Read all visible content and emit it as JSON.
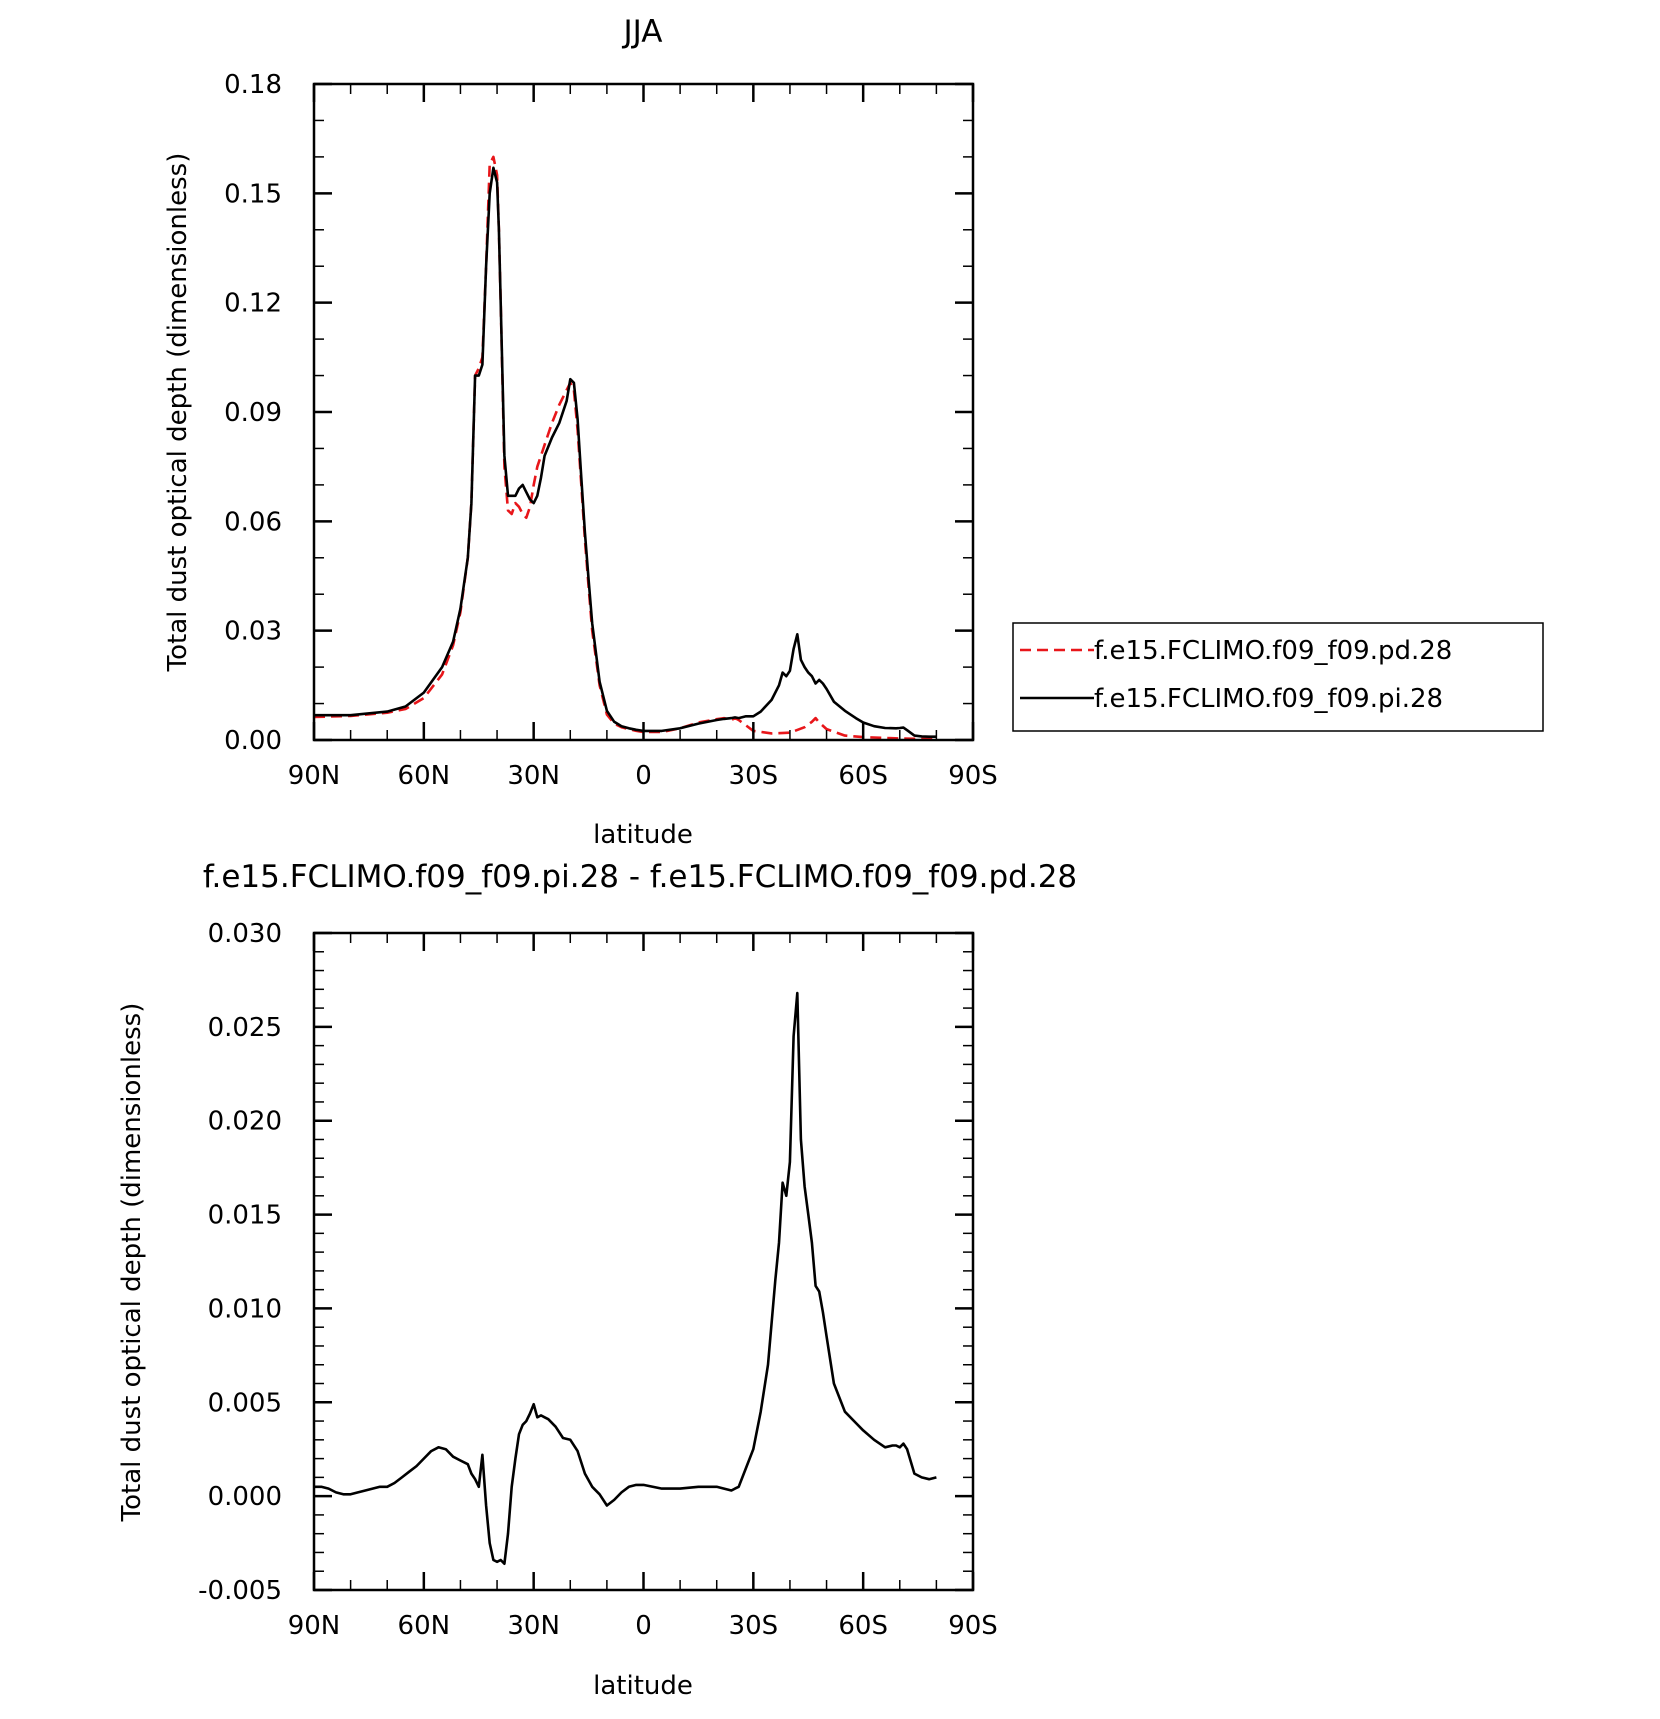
{
  "chart_data": [
    {
      "type": "line",
      "title": "JJA",
      "xlabel": "latitude",
      "ylabel": "Total dust optical depth (dimensionless)",
      "xlim": [
        90,
        -90
      ],
      "ylim": [
        0,
        0.18
      ],
      "x_ticks": [
        90,
        60,
        30,
        0,
        -30,
        -60,
        -90
      ],
      "x_tick_labels": [
        "90N",
        "60N",
        "30N",
        "0",
        "30S",
        "60S",
        "90S"
      ],
      "y_ticks": [
        0,
        0.03,
        0.06,
        0.09,
        0.12,
        0.15,
        0.18
      ],
      "y_tick_labels": [
        "0.00",
        "0.03",
        "0.06",
        "0.09",
        "0.12",
        "0.15",
        "0.18"
      ],
      "legend_position": "right",
      "series": [
        {
          "name": "f.e15.FCLIMO.f09_f09.pd.28",
          "color": "#e8161a",
          "style": "dashed",
          "x": [
            90,
            80,
            70,
            65,
            60,
            55,
            52,
            50,
            48,
            47,
            46,
            45,
            44,
            43,
            42,
            41,
            40,
            39.5,
            39,
            38,
            37,
            36,
            35,
            34,
            33,
            32,
            31,
            30,
            29,
            28,
            27,
            25,
            23,
            21,
            20,
            19,
            18,
            17,
            16,
            15,
            14,
            12,
            10,
            8,
            6,
            4,
            2,
            0,
            -5,
            -10,
            -15,
            -20,
            -22,
            -24,
            -25,
            -26,
            -28,
            -30,
            -35,
            -40,
            -44,
            -46,
            -47,
            -48,
            -50,
            -55,
            -60,
            -65,
            -70,
            -75,
            -80
          ],
          "y": [
            0.0063,
            0.0066,
            0.0075,
            0.0085,
            0.0115,
            0.018,
            0.026,
            0.035,
            0.05,
            0.065,
            0.1,
            0.102,
            0.105,
            0.13,
            0.158,
            0.16,
            0.155,
            0.14,
            0.12,
            0.075,
            0.063,
            0.062,
            0.065,
            0.064,
            0.062,
            0.061,
            0.064,
            0.07,
            0.075,
            0.078,
            0.081,
            0.087,
            0.092,
            0.096,
            0.098,
            0.096,
            0.085,
            0.07,
            0.055,
            0.042,
            0.03,
            0.015,
            0.007,
            0.0045,
            0.0035,
            0.003,
            0.0025,
            0.0022,
            0.0022,
            0.0032,
            0.0048,
            0.0057,
            0.006,
            0.0055,
            0.006,
            0.0055,
            0.004,
            0.0025,
            0.0018,
            0.002,
            0.0035,
            0.005,
            0.006,
            0.0048,
            0.003,
            0.0012,
            0.0008,
            0.0006,
            0.0004,
            0.0003,
            0.0003
          ]
        },
        {
          "name": "f.e15.FCLIMO.f09_f09.pi.28",
          "color": "#000000",
          "style": "solid",
          "x": [
            90,
            80,
            70,
            65,
            60,
            55,
            52,
            50,
            48,
            47,
            46,
            45,
            44,
            43,
            42,
            41,
            40,
            39.5,
            39,
            38,
            37,
            36,
            35,
            34,
            33,
            32,
            31,
            30,
            29,
            28,
            27,
            25,
            23,
            21,
            20,
            19,
            18,
            17,
            16,
            15,
            14,
            12,
            10,
            8,
            6,
            4,
            2,
            0,
            -5,
            -10,
            -15,
            -20,
            -22,
            -24,
            -25,
            -26,
            -28,
            -30,
            -32,
            -35,
            -37,
            -38,
            -39,
            -40,
            -41,
            -42,
            -43,
            -44,
            -45,
            -46,
            -47,
            -48,
            -49,
            -50,
            -52,
            -55,
            -58,
            -60,
            -63,
            -66,
            -69,
            -70,
            -71,
            -72,
            -74,
            -76,
            -78,
            -80
          ],
          "y": [
            0.0068,
            0.0068,
            0.0078,
            0.0092,
            0.013,
            0.02,
            0.027,
            0.036,
            0.05,
            0.065,
            0.1,
            0.1,
            0.103,
            0.13,
            0.15,
            0.157,
            0.153,
            0.14,
            0.12,
            0.078,
            0.067,
            0.067,
            0.067,
            0.069,
            0.07,
            0.068,
            0.066,
            0.065,
            0.067,
            0.072,
            0.078,
            0.083,
            0.087,
            0.093,
            0.099,
            0.098,
            0.088,
            0.072,
            0.057,
            0.044,
            0.032,
            0.016,
            0.008,
            0.005,
            0.0038,
            0.0032,
            0.0028,
            0.0025,
            0.0025,
            0.0032,
            0.0045,
            0.0055,
            0.0058,
            0.006,
            0.0062,
            0.006,
            0.0065,
            0.0065,
            0.0078,
            0.011,
            0.015,
            0.0185,
            0.0175,
            0.019,
            0.025,
            0.029,
            0.022,
            0.02,
            0.0185,
            0.0175,
            0.0155,
            0.0165,
            0.0155,
            0.014,
            0.0105,
            0.008,
            0.006,
            0.0048,
            0.0038,
            0.0033,
            0.0032,
            0.0033,
            0.0034,
            0.0027,
            0.0012,
            0.001,
            0.0009,
            0.0009
          ]
        }
      ]
    },
    {
      "type": "line",
      "title": "f.e15.FCLIMO.f09_f09.pi.28 - f.e15.FCLIMO.f09_f09.pd.28",
      "xlabel": "latitude",
      "ylabel": "Total dust optical depth (dimensionless)",
      "xlim": [
        90,
        -90
      ],
      "ylim": [
        -0.005,
        0.03
      ],
      "x_ticks": [
        90,
        60,
        30,
        0,
        -30,
        -60,
        -90
      ],
      "x_tick_labels": [
        "90N",
        "60N",
        "30N",
        "0",
        "30S",
        "60S",
        "90S"
      ],
      "y_ticks": [
        -0.005,
        0,
        0.005,
        0.01,
        0.015,
        0.02,
        0.025,
        0.03
      ],
      "y_tick_labels": [
        "-0.005",
        "0.000",
        "0.005",
        "0.010",
        "0.015",
        "0.020",
        "0.025",
        "0.030"
      ],
      "series": [
        {
          "color": "#000000",
          "style": "solid",
          "x": [
            90,
            88,
            86,
            84,
            82,
            80,
            78,
            76,
            74,
            72,
            70,
            68,
            66,
            64,
            62,
            60,
            58,
            56,
            54,
            52,
            50,
            48,
            47,
            46,
            45,
            44,
            43,
            42,
            41,
            40,
            39,
            38,
            37,
            36,
            35,
            34,
            33,
            32,
            31,
            30,
            29,
            28,
            27,
            26,
            24,
            22,
            20,
            18,
            16,
            14,
            12,
            10,
            8,
            6,
            4,
            2,
            0,
            -5,
            -10,
            -15,
            -20,
            -22,
            -24,
            -25,
            -26,
            -28,
            -30,
            -32,
            -34,
            -36,
            -37,
            -38,
            -39,
            -40,
            -41,
            -42,
            -43,
            -44,
            -45,
            -46,
            -47,
            -48,
            -49,
            -50,
            -52,
            -55,
            -58,
            -60,
            -63,
            -66,
            -68,
            -69,
            -70,
            -71,
            -72,
            -74,
            -76,
            -78,
            -80
          ],
          "y": [
            0.0005,
            0.0005,
            0.0004,
            0.0002,
            0.0001,
            0.0001,
            0.0002,
            0.0003,
            0.0004,
            0.0005,
            0.0005,
            0.0007,
            0.001,
            0.0013,
            0.0016,
            0.002,
            0.0024,
            0.0026,
            0.0025,
            0.0021,
            0.0019,
            0.0017,
            0.0012,
            0.0009,
            0.0005,
            0.0022,
            -0.0005,
            -0.0025,
            -0.0034,
            -0.0035,
            -0.0034,
            -0.0036,
            -0.002,
            0.0005,
            0.002,
            0.0033,
            0.0038,
            0.004,
            0.0044,
            0.0049,
            0.0042,
            0.0043,
            0.0042,
            0.0041,
            0.0037,
            0.0031,
            0.003,
            0.0024,
            0.0012,
            0.0005,
            0.0001,
            -0.0005,
            -0.0002,
            0.0002,
            0.0005,
            0.0006,
            0.0006,
            0.0004,
            0.0004,
            0.0005,
            0.0005,
            0.0004,
            0.0003,
            0.0004,
            0.0005,
            0.0015,
            0.0025,
            0.0045,
            0.007,
            0.0115,
            0.0135,
            0.0167,
            0.016,
            0.0178,
            0.0245,
            0.0268,
            0.019,
            0.0165,
            0.015,
            0.0135,
            0.0112,
            0.0109,
            0.0098,
            0.0085,
            0.006,
            0.0045,
            0.0039,
            0.0035,
            0.003,
            0.0026,
            0.0027,
            0.0027,
            0.0026,
            0.0028,
            0.0025,
            0.0012,
            0.001,
            0.0009,
            0.001
          ]
        }
      ]
    }
  ]
}
